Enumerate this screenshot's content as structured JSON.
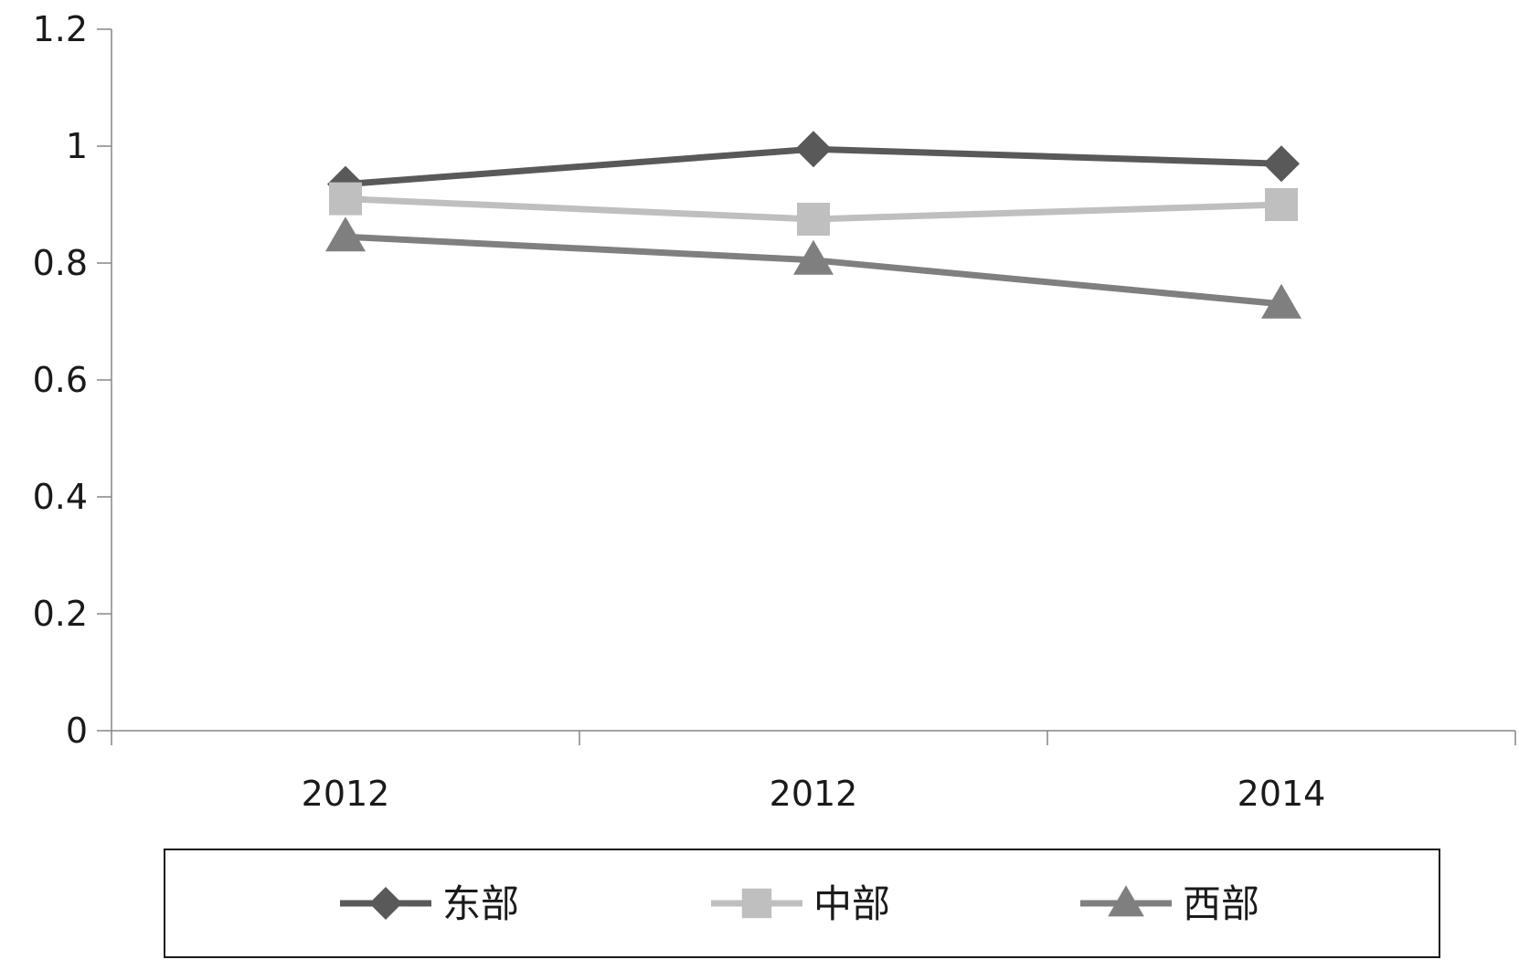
{
  "chart_data": {
    "type": "line",
    "categories": [
      "2012",
      "2012",
      "2014"
    ],
    "series": [
      {
        "name": "东部",
        "values": [
          0.935,
          0.995,
          0.97
        ],
        "color": "#595959",
        "marker": "diamond"
      },
      {
        "name": "中部",
        "values": [
          0.91,
          0.875,
          0.9
        ],
        "color": "#bfbfbf",
        "marker": "square"
      },
      {
        "name": "西部",
        "values": [
          0.845,
          0.805,
          0.73
        ],
        "color": "#7f7f7f",
        "marker": "triangle"
      }
    ],
    "ylim": [
      0,
      1.2
    ],
    "yticks": [
      "0",
      "0.2",
      "0.4",
      "0.6",
      "0.8",
      "1",
      "1.2"
    ],
    "title": "",
    "xlabel": "",
    "ylabel": "",
    "grid": false,
    "legend_position": "bottom"
  }
}
